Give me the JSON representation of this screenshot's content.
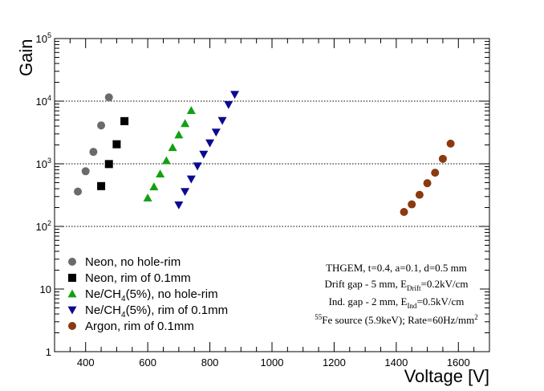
{
  "chart_data": {
    "type": "scatter",
    "title": "",
    "xlabel": "Voltage [V]",
    "ylabel": "Gain",
    "xlim": [
      300,
      1700
    ],
    "ylim": [
      1,
      100000
    ],
    "yscale": "log",
    "grid_y_at": [
      100,
      1000,
      10000
    ],
    "x_ticks": [
      400,
      600,
      800,
      1000,
      1200,
      1400,
      1600
    ],
    "y_ticks": [
      {
        "value": 1,
        "label": "1"
      },
      {
        "value": 10,
        "label": "10"
      },
      {
        "value": 100,
        "label": "10",
        "sup": "2"
      },
      {
        "value": 1000,
        "label": "10",
        "sup": "3"
      },
      {
        "value": 10000,
        "label": "10",
        "sup": "4"
      },
      {
        "value": 100000,
        "label": "10",
        "sup": "5"
      }
    ],
    "series": [
      {
        "name": "Neon, no hole-rim",
        "marker": "circle",
        "color": "#6b6b6b",
        "x": [
          375,
          400,
          425,
          450,
          475
        ],
        "y": [
          360,
          760,
          1550,
          4100,
          11500
        ]
      },
      {
        "name": "Neon, rim of 0.1mm",
        "marker": "square",
        "color": "#000000",
        "x": [
          450,
          475,
          500,
          525
        ],
        "y": [
          440,
          990,
          2050,
          4800
        ]
      },
      {
        "name": "Ne/CH4(5%), no hole-rim",
        "name_parts": [
          "Ne/CH",
          "4",
          "(5%), no hole-rim"
        ],
        "marker": "triangle-up",
        "color": "#12a012",
        "x": [
          600,
          620,
          640,
          660,
          680,
          700,
          720,
          740
        ],
        "y": [
          285,
          430,
          690,
          1120,
          1820,
          2900,
          4400,
          7100
        ]
      },
      {
        "name": "Ne/CH4(5%), rim of 0.1mm",
        "name_parts": [
          "Ne/CH",
          "4",
          "(5%), rim of 0.1mm"
        ],
        "marker": "triangle-down",
        "color": "#0a0a90",
        "x": [
          700,
          720,
          740,
          760,
          780,
          800,
          820,
          840,
          860,
          880
        ],
        "y": [
          220,
          360,
          570,
          920,
          1420,
          2150,
          3200,
          4900,
          8800,
          12800
        ]
      },
      {
        "name": "Argon, rim of 0.1mm",
        "marker": "circle",
        "color": "#8b3a10",
        "x": [
          1425,
          1450,
          1475,
          1500,
          1525,
          1550,
          1575
        ],
        "y": [
          170,
          225,
          320,
          490,
          720,
          1200,
          2100
        ]
      }
    ],
    "annotation": {
      "line1": "THGEM, t=0.4, a=0.1, d=0.5 mm",
      "line2_pre": "Drift gap - 5 mm, E",
      "line2_sub": "Drift",
      "line2_post": "=0.2kV/cm",
      "line3_pre": "Ind. gap - 2 mm, E",
      "line3_sub": "Ind",
      "line3_post": "=0.5kV/cm",
      "line4_sup": "55",
      "line4_main": "Fe source (5.9keV); Rate=60Hz/mm",
      "line4_sup2": "2"
    }
  }
}
